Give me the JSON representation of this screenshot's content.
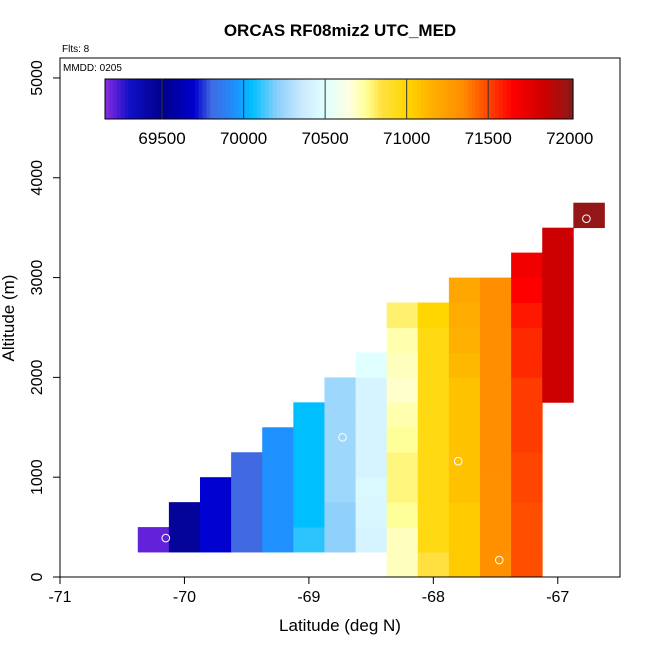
{
  "chart_data": {
    "type": "heatmap",
    "title": "ORCAS RF08miz2 UTC_MED",
    "subtitle_flights": "Flts: 8",
    "subtitle_mmdd": "MMDD: 0205",
    "xlabel": "Latitude (deg N)",
    "ylabel": "Altitude (m)",
    "xlim": [
      -71,
      -66.5
    ],
    "ylim": [
      0,
      5200
    ],
    "x_ticks": [
      -71,
      -70,
      -69,
      -68,
      -67
    ],
    "x_tick_labels": [
      "-71",
      "-70",
      "-69",
      "-68",
      "-67"
    ],
    "y_ticks": [
      0,
      1000,
      2000,
      3000,
      4000,
      5000
    ],
    "y_tick_labels": [
      "0",
      "1000",
      "2000",
      "3000",
      "4000",
      "5000"
    ],
    "cell_width_deg": 0.25,
    "cell_height_m": 250,
    "color_scale": {
      "min": 69150,
      "max": 72020,
      "ticks": [
        69500,
        70000,
        70500,
        71000,
        71500,
        72000
      ],
      "tick_labels": [
        "69500",
        "70000",
        "70500",
        "71000",
        "71500",
        "72000"
      ],
      "stops": [
        {
          "v": 69150,
          "c": "#8a2be2"
        },
        {
          "v": 69300,
          "c": "#1010c8"
        },
        {
          "v": 69500,
          "c": "#00008b"
        },
        {
          "v": 69700,
          "c": "#0000d0"
        },
        {
          "v": 69800,
          "c": "#4169e1"
        },
        {
          "v": 69950,
          "c": "#1e90ff"
        },
        {
          "v": 70050,
          "c": "#00bfff"
        },
        {
          "v": 70200,
          "c": "#87cefa"
        },
        {
          "v": 70350,
          "c": "#c8e8ff"
        },
        {
          "v": 70500,
          "c": "#e0ffff"
        },
        {
          "v": 70650,
          "c": "#ffffe0"
        },
        {
          "v": 70750,
          "c": "#ffff99"
        },
        {
          "v": 70850,
          "c": "#ffe040"
        },
        {
          "v": 71000,
          "c": "#ffd700"
        },
        {
          "v": 71150,
          "c": "#ffb000"
        },
        {
          "v": 71350,
          "c": "#ff8c00"
        },
        {
          "v": 71500,
          "c": "#ff4500"
        },
        {
          "v": 71650,
          "c": "#ff0000"
        },
        {
          "v": 71850,
          "c": "#cc0000"
        },
        {
          "v": 72020,
          "c": "#8b1a1a"
        }
      ]
    },
    "columns": [
      {
        "lat": -70.25,
        "alt_min": 250,
        "alt_max": 500,
        "values": [
          69200
        ]
      },
      {
        "lat": -70.0,
        "alt_min": 250,
        "alt_max": 750,
        "values": [
          69450,
          69450
        ]
      },
      {
        "lat": -69.75,
        "alt_min": 250,
        "alt_max": 1000,
        "values": [
          69700,
          69700,
          69700
        ]
      },
      {
        "lat": -69.5,
        "alt_min": 250,
        "alt_max": 1250,
        "values": [
          69800,
          69800,
          69800,
          69800
        ]
      },
      {
        "lat": -69.25,
        "alt_min": 250,
        "alt_max": 1500,
        "values": [
          69950,
          69950,
          69950,
          69950,
          69950
        ]
      },
      {
        "lat": -69.0,
        "alt_min": 250,
        "alt_max": 1750,
        "values": [
          70100,
          70050,
          70050,
          70050,
          70050,
          70050
        ]
      },
      {
        "lat": -68.75,
        "alt_min": 250,
        "alt_max": 2000,
        "values": [
          70220,
          70220,
          70250,
          70250,
          70250,
          70250,
          70250
        ]
      },
      {
        "lat": -68.5,
        "alt_min": 250,
        "alt_max": 2250,
        "values": [
          70430,
          70450,
          70460,
          70430,
          70430,
          70430,
          70430,
          70500
        ]
      },
      {
        "lat": -68.25,
        "alt_min": 0,
        "alt_max": 2750,
        "values": [
          70700,
          70700,
          70750,
          70780,
          70780,
          70750,
          70720,
          70680,
          70700,
          70720,
          70800
        ]
      },
      {
        "lat": -68.0,
        "alt_min": 0,
        "alt_max": 2750,
        "values": [
          70850,
          70960,
          70960,
          70960,
          70960,
          70960,
          70960,
          70960,
          70960,
          70960,
          71000
        ]
      },
      {
        "lat": -67.75,
        "alt_min": 0,
        "alt_max": 3000,
        "values": [
          71050,
          71050,
          71050,
          71080,
          71080,
          71080,
          71080,
          71080,
          71120,
          71150,
          71180,
          71200
        ]
      },
      {
        "lat": -67.5,
        "alt_min": 0,
        "alt_max": 3000,
        "values": [
          71320,
          71320,
          71320,
          71320,
          71340,
          71340,
          71340,
          71340,
          71340,
          71340,
          71340,
          71340
        ]
      },
      {
        "lat": -67.25,
        "alt_min": 0,
        "alt_max": 3250,
        "values": [
          71480,
          71480,
          71480,
          71500,
          71500,
          71520,
          71520,
          71520,
          71560,
          71560,
          71600,
          71650,
          71700
        ]
      },
      {
        "lat": -67.0,
        "alt_min": 1750,
        "alt_max": 3500,
        "values": [
          71850,
          71850,
          71850,
          71850,
          71850,
          71850,
          71850
        ]
      },
      {
        "lat": -66.75,
        "alt_min": 3500,
        "alt_max": 3750,
        "values": [
          72000
        ]
      }
    ],
    "markers": [
      {
        "lat": -70.15,
        "alt": 390
      },
      {
        "lat": -68.73,
        "alt": 1400
      },
      {
        "lat": -67.8,
        "alt": 1160
      },
      {
        "lat": -67.47,
        "alt": 170
      },
      {
        "lat": -66.77,
        "alt": 3590
      }
    ]
  }
}
